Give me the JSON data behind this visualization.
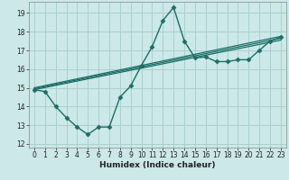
{
  "xlabel": "Humidex (Indice chaleur)",
  "ylabel": "",
  "background_color": "#cce8e8",
  "grid_color": "#aad0d0",
  "line_color": "#1a6e65",
  "xlim": [
    -0.5,
    23.5
  ],
  "ylim": [
    11.8,
    19.6
  ],
  "xticks": [
    0,
    1,
    2,
    3,
    4,
    5,
    6,
    7,
    8,
    9,
    10,
    11,
    12,
    13,
    14,
    15,
    16,
    17,
    18,
    19,
    20,
    21,
    22,
    23
  ],
  "yticks": [
    12,
    13,
    14,
    15,
    16,
    17,
    18,
    19
  ],
  "main_series": {
    "x": [
      0,
      1,
      2,
      3,
      4,
      5,
      6,
      7,
      8,
      9,
      10,
      11,
      12,
      13,
      14,
      15,
      16,
      17,
      18,
      19,
      20,
      21,
      22,
      23
    ],
    "y": [
      14.9,
      14.8,
      14.0,
      13.4,
      12.9,
      12.5,
      12.9,
      12.9,
      14.5,
      15.1,
      16.2,
      17.2,
      18.6,
      19.3,
      17.5,
      16.6,
      16.65,
      16.4,
      16.4,
      16.5,
      16.5,
      17.0,
      17.5,
      17.7
    ],
    "marker": "D",
    "markersize": 2.5,
    "linewidth": 1.0
  },
  "straight_lines": [
    {
      "x": [
        0,
        23
      ],
      "y": [
        15.0,
        17.75
      ],
      "linewidth": 0.9
    },
    {
      "x": [
        0,
        23
      ],
      "y": [
        14.9,
        17.55
      ],
      "linewidth": 0.9
    },
    {
      "x": [
        0,
        23
      ],
      "y": [
        14.95,
        17.65
      ],
      "linewidth": 0.9
    }
  ],
  "tick_fontsize": 5.5,
  "xlabel_fontsize": 6.5
}
